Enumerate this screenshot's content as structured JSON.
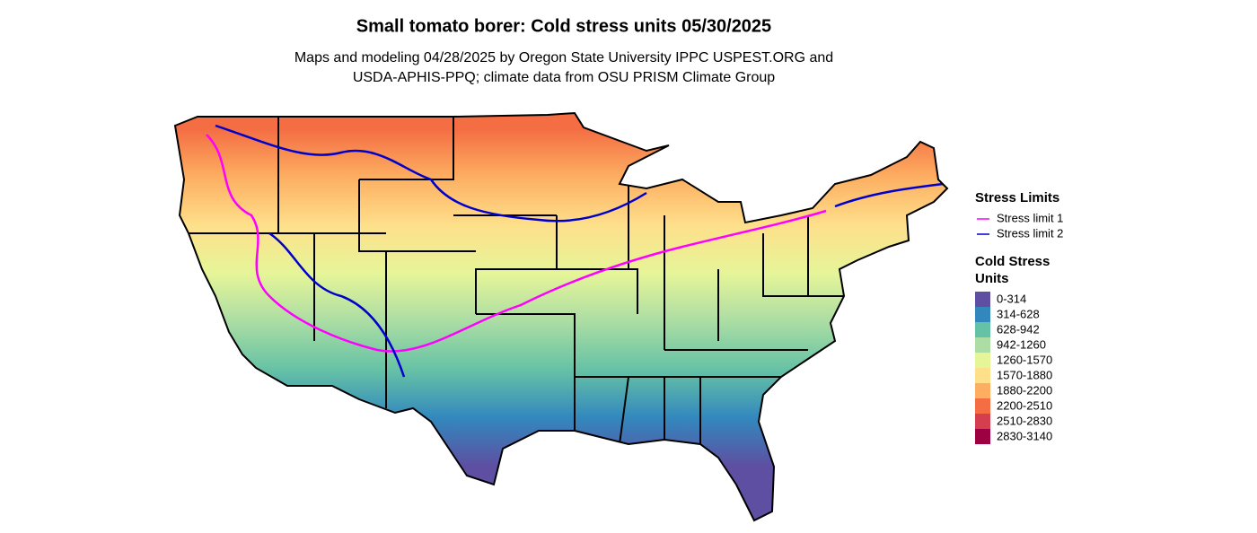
{
  "title": "Small tomato borer: Cold stress units 05/30/2025",
  "subtitle_lines": [
    "Maps and modeling 04/28/2025 by Oregon State University IPPC USPEST.ORG and",
    "USDA-APHIS-PPQ; climate data from OSU PRISM Climate Group"
  ],
  "legend": {
    "stress_limits": {
      "title": "Stress Limits",
      "items": [
        {
          "label": "Stress limit 1",
          "color": "#ff00ff"
        },
        {
          "label": "Stress limit 2",
          "color": "#0000cc"
        }
      ]
    },
    "cold_stress_units": {
      "title_lines": [
        "Cold Stress",
        "Units"
      ],
      "items": [
        {
          "label": "0-314",
          "color": "#5e4fa2"
        },
        {
          "label": "314-628",
          "color": "#3288bd"
        },
        {
          "label": "628-942",
          "color": "#66c2a5"
        },
        {
          "label": "942-1260",
          "color": "#abdda4"
        },
        {
          "label": "1260-1570",
          "color": "#e6f598"
        },
        {
          "label": "1570-1880",
          "color": "#fee08b"
        },
        {
          "label": "1880-2200",
          "color": "#fdae61"
        },
        {
          "label": "2200-2510",
          "color": "#f46d43"
        },
        {
          "label": "2510-2830",
          "color": "#d53e4f"
        },
        {
          "label": "2830-3140",
          "color": "#9e0142"
        }
      ]
    }
  }
}
